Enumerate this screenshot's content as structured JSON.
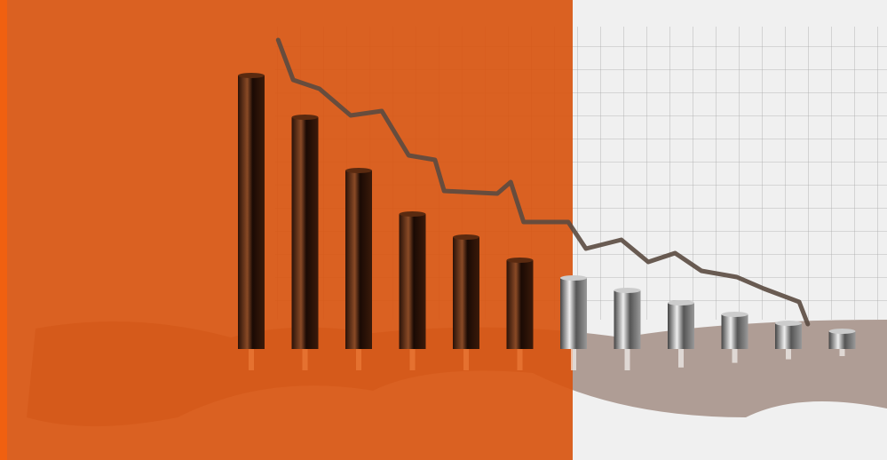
{
  "chart_data": {
    "type": "bar",
    "values": [
      308,
      261,
      201,
      152,
      126,
      100,
      80,
      66,
      52,
      39,
      29,
      20
    ],
    "ylim": [
      0,
      393
    ],
    "xlim": [
      0,
      12
    ],
    "trend": {
      "x": [
        1.0,
        1.28,
        1.77,
        2.35,
        2.93,
        3.43,
        3.92,
        4.09,
        5.08,
        5.33,
        5.57,
        6.4,
        6.73,
        7.39,
        7.89,
        8.39,
        8.88,
        9.54,
        10.04,
        10.7,
        10.86
      ],
      "values": [
        348,
        303,
        293,
        263,
        268,
        218,
        213,
        178,
        175,
        188,
        143,
        143,
        113,
        123,
        98,
        108,
        88,
        81,
        68,
        53,
        28
      ],
      "color": "#5a4a40"
    }
  }
}
